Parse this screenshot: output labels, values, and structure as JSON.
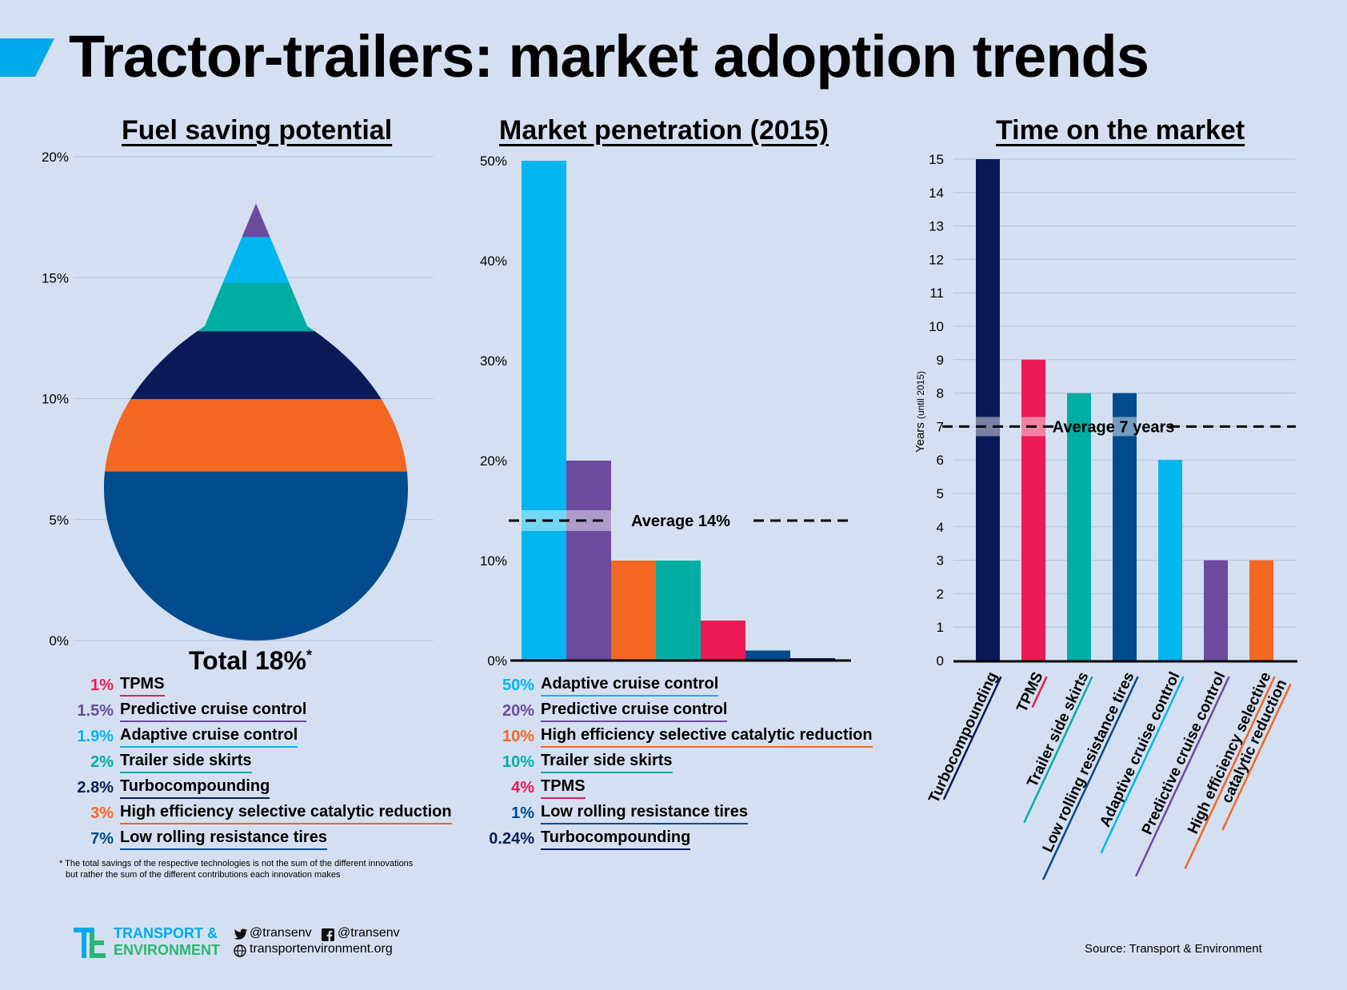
{
  "header": {
    "title": "Tractor-trailers: market adoption trends"
  },
  "colors": {
    "tpms": "#ec1a55",
    "predictive": "#6c4a9e",
    "adaptive": "#00b6ef",
    "skirts": "#00ada3",
    "turbo": "#0a1a58",
    "scr": "#f26722",
    "tires": "#004b8d"
  },
  "panel1": {
    "title": "Fuel saving potential",
    "total_label": "Total 18%",
    "total_mark": "*",
    "footnote_line1": "* The total savings of the respective technologies is not the sum of the different innovations",
    "footnote_line2": "but rather the sum of the different contributions each innovation makes",
    "legend": [
      {
        "value": "1%",
        "name": "TPMS",
        "key": "tpms"
      },
      {
        "value": "1.5%",
        "name": "Predictive  cruise control",
        "key": "predictive"
      },
      {
        "value": "1.9%",
        "name": "Adaptive cruise control",
        "key": "adaptive"
      },
      {
        "value": "2%",
        "name": "Trailer side skirts",
        "key": "skirts"
      },
      {
        "value": "2.8%",
        "name": "Turbocompounding",
        "key": "turbo"
      },
      {
        "value": "3%",
        "name": "High efficiency selective catalytic reduction",
        "key": "scr"
      },
      {
        "value": "7%",
        "name": "Low rolling resistance tires",
        "key": "tires"
      }
    ]
  },
  "panel2": {
    "title": "Market penetration (2015)",
    "legend": [
      {
        "value": "50%",
        "name": "Adaptive cruise control",
        "key": "adaptive"
      },
      {
        "value": "20%",
        "name": "Predictive  cruise control",
        "key": "predictive"
      },
      {
        "value": "10%",
        "name": "High efficiency selective catalytic reduction",
        "key": "scr"
      },
      {
        "value": "10%",
        "name": "Trailer side skirts",
        "key": "skirts"
      },
      {
        "value": "4%",
        "name": "TPMS",
        "key": "tpms"
      },
      {
        "value": "1%",
        "name": "Low rolling resistance tires",
        "key": "tires"
      },
      {
        "value": "0.24%",
        "name": "Turbocompounding",
        "key": "turbo"
      }
    ]
  },
  "panel3": {
    "title": "Time on the market"
  },
  "chart_data": [
    {
      "type": "area",
      "title": "Fuel saving potential",
      "ylim": [
        0,
        20
      ],
      "yticks": [
        "0%",
        "5%",
        "10%",
        "15%",
        "20%"
      ],
      "segments_bottom_to_top": [
        {
          "name": "Low rolling resistance tires",
          "value": 7,
          "key": "tires"
        },
        {
          "name": "High efficiency selective catalytic reduction",
          "value": 3,
          "key": "scr"
        },
        {
          "name": "Turbocompounding",
          "value": 2.8,
          "key": "turbo"
        },
        {
          "name": "Trailer side skirts",
          "value": 2,
          "key": "skirts"
        },
        {
          "name": "Adaptive cruise control",
          "value": 1.9,
          "key": "adaptive"
        },
        {
          "name": "Predictive  cruise control",
          "value": 1.5,
          "key": "predictive"
        },
        {
          "name": "TPMS",
          "value": 1,
          "key": "tpms"
        }
      ],
      "total": 18,
      "grid": true
    },
    {
      "type": "bar",
      "title": "Market penetration (2015)",
      "ylim": [
        0,
        50
      ],
      "yticks": [
        "0%",
        "10%",
        "20%",
        "30%",
        "40%",
        "50%"
      ],
      "categories": [
        "Adaptive cruise control",
        "Predictive  cruise control",
        "High efficiency selective catalytic reduction",
        "Trailer side skirts",
        "TPMS",
        "Low rolling resistance tires",
        "Turbocompounding"
      ],
      "values": [
        50,
        20,
        10,
        10,
        4,
        1,
        0.24
      ],
      "keys": [
        "adaptive",
        "predictive",
        "scr",
        "skirts",
        "tpms",
        "tires",
        "turbo"
      ],
      "average": 14,
      "average_label": "Average 14%"
    },
    {
      "type": "bar",
      "title": "Time on the market",
      "ylabel": "Years",
      "ylabel_sub": "(until 2015)",
      "ylim": [
        0,
        15
      ],
      "yticks": [
        "0",
        "1",
        "2",
        "3",
        "4",
        "5",
        "6",
        "7",
        "8",
        "9",
        "10",
        "11",
        "12",
        "13",
        "14",
        "15"
      ],
      "categories": [
        "Turbocompounding",
        "TPMS",
        "Trailer side skirts",
        "Low rolling resistance tires",
        "Adaptive cruise control",
        "Predictive  cruise control",
        "High efficiency selective catalytic reduction"
      ],
      "category_lines": [
        [
          "Turbocompounding"
        ],
        [
          "TPMS"
        ],
        [
          "Trailer side skirts"
        ],
        [
          "Low rolling resistance tires"
        ],
        [
          "Adaptive cruise control"
        ],
        [
          "Predictive  cruise control"
        ],
        [
          "High efficiency selective",
          "catalytic reduction"
        ]
      ],
      "values": [
        15,
        9,
        8,
        8,
        6,
        3,
        3
      ],
      "keys": [
        "turbo",
        "tpms",
        "skirts",
        "tires",
        "adaptive",
        "predictive",
        "scr"
      ],
      "average": 7,
      "average_label": "Average 7 years",
      "grid": true
    }
  ],
  "footer": {
    "brand_line1": "TRANSPORT &",
    "brand_line2": "ENVIRONMENT",
    "twitter": "@transenv",
    "facebook": "@transenv",
    "website": "transportenvironment.org",
    "source": "Source: Transport & Environment"
  }
}
